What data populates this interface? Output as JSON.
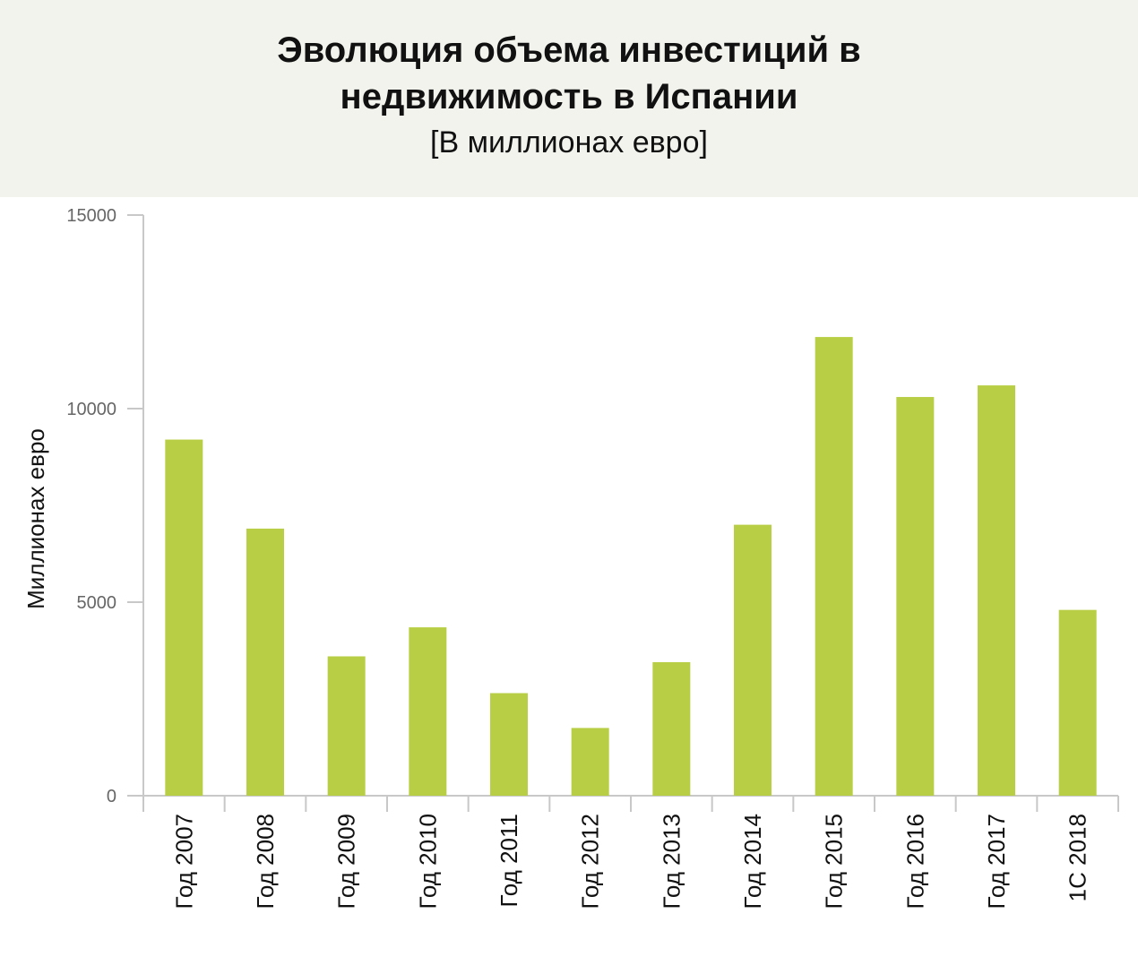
{
  "header": {
    "title_line1": "Эволюция объема инвестиций в",
    "title_line2": "недвижимость в Испании",
    "subtitle": "[В миллионах евро]"
  },
  "chart_data": {
    "type": "bar",
    "ylabel": "Миллионах евро",
    "ylim": [
      0,
      15000
    ],
    "yticks": [
      0,
      5000,
      10000,
      15000
    ],
    "categories": [
      "Год 2007",
      "Год 2008",
      "Год 2009",
      "Год 2010",
      "Год 2011",
      "Год 2012",
      "Год 2013",
      "Год 2014",
      "Год 2015",
      "Год 2016",
      "Год 2017",
      "1С 2018"
    ],
    "values": [
      9200,
      6900,
      3600,
      4350,
      2650,
      1750,
      3450,
      7000,
      11850,
      10300,
      10600,
      4800
    ],
    "bar_color": "#b8cf45",
    "axis_color": "#c8c8c8",
    "grid": false
  }
}
